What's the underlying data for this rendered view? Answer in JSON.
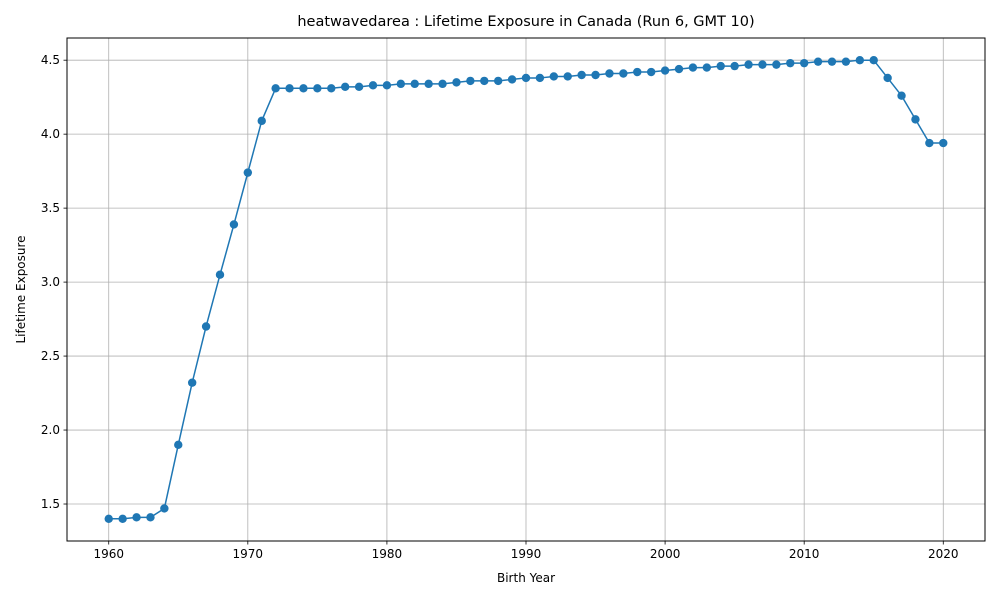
{
  "chart_data": {
    "type": "line",
    "title": "heatwavedarea : Lifetime Exposure in Canada (Run 6, GMT 10)",
    "xlabel": "Birth Year",
    "ylabel": "Lifetime Exposure",
    "xlim": [
      1957,
      2023
    ],
    "ylim": [
      1.25,
      4.65
    ],
    "xticks": [
      1960,
      1970,
      1980,
      1990,
      2000,
      2010,
      2020
    ],
    "yticks": [
      1.5,
      2.0,
      2.5,
      3.0,
      3.5,
      4.0,
      4.5
    ],
    "xtick_labels": [
      "1960",
      "1970",
      "1980",
      "1990",
      "2000",
      "2010",
      "2020"
    ],
    "ytick_labels": [
      "1.5",
      "2.0",
      "2.5",
      "3.0",
      "3.5",
      "4.0",
      "4.5"
    ],
    "grid": true,
    "legend": "none",
    "series": [
      {
        "color": "#1f77b4",
        "marker": "circle",
        "x": [
          1960,
          1961,
          1962,
          1963,
          1964,
          1965,
          1966,
          1967,
          1968,
          1969,
          1970,
          1971,
          1972,
          1973,
          1974,
          1975,
          1976,
          1977,
          1978,
          1979,
          1980,
          1981,
          1982,
          1983,
          1984,
          1985,
          1986,
          1987,
          1988,
          1989,
          1990,
          1991,
          1992,
          1993,
          1994,
          1995,
          1996,
          1997,
          1998,
          1999,
          2000,
          2001,
          2002,
          2003,
          2004,
          2005,
          2006,
          2007,
          2008,
          2009,
          2010,
          2011,
          2012,
          2013,
          2014,
          2015,
          2016,
          2017,
          2018,
          2019,
          2020
        ],
        "values": [
          1.4,
          1.4,
          1.41,
          1.41,
          1.47,
          1.9,
          2.32,
          2.7,
          3.05,
          3.39,
          3.74,
          4.09,
          4.31,
          4.31,
          4.31,
          4.31,
          4.31,
          4.32,
          4.32,
          4.33,
          4.33,
          4.34,
          4.34,
          4.34,
          4.34,
          4.35,
          4.36,
          4.36,
          4.36,
          4.37,
          4.38,
          4.38,
          4.39,
          4.39,
          4.4,
          4.4,
          4.41,
          4.41,
          4.42,
          4.42,
          4.43,
          4.44,
          4.45,
          4.45,
          4.46,
          4.46,
          4.47,
          4.47,
          4.47,
          4.48,
          4.48,
          4.49,
          4.49,
          4.49,
          4.5,
          4.5,
          4.38,
          4.26,
          4.1,
          3.94,
          3.94
        ]
      }
    ]
  }
}
